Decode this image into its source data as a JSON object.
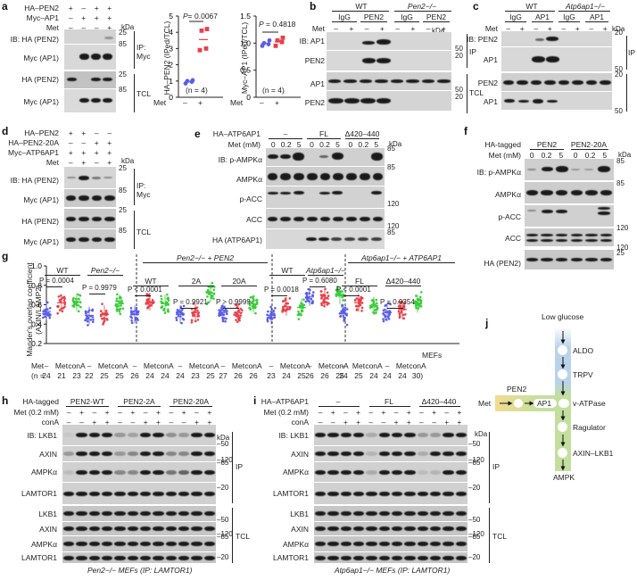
{
  "figure": {
    "colors": {
      "blue": "#5a5ee8",
      "red": "#e8404a",
      "green": "#3ccc3c",
      "blot_bg": "#c8c8c8",
      "band": "#1a1a1a",
      "pathway_blue": "#b9d3ea",
      "pathway_green": "#c3df9e",
      "pathway_yellow": "#f3dc8f"
    },
    "panels": {
      "a": {
        "label": "a",
        "conditions": [
          {
            "name": "HA–PEN2",
            "values": [
              "+",
              "–",
              "+",
              "+"
            ]
          },
          {
            "name": "Myc–AP1",
            "values": [
              "–",
              "+",
              "+",
              "+"
            ]
          },
          {
            "name": "Met",
            "values": [
              "–",
              "–",
              "–",
              "+"
            ]
          }
        ],
        "kda": "kDa",
        "rows": [
          {
            "label": "IB: HA (PEN2)",
            "mw": "25"
          },
          {
            "label": "Myc (AP1)",
            "mw": "85"
          },
          {
            "label": "HA (PEN2)",
            "mw": "25"
          },
          {
            "label": "Myc (AP1)",
            "mw": "85"
          }
        ],
        "groups": [
          "IP: Myc",
          "TCL"
        ]
      },
      "b": {
        "label": "b",
        "genotypes": [
          "WT",
          "Pen2−/−"
        ],
        "ip": [
          "IgG",
          "PEN2",
          "IgG",
          "PEN2"
        ],
        "met_label": "Met",
        "met": [
          "–",
          "+",
          "–",
          "+",
          "–",
          "+",
          "–",
          "+"
        ],
        "kda": "kDa",
        "rows": [
          {
            "label": "IB: AP1"
          },
          {
            "label": "PEN2"
          },
          {
            "label": "AP1"
          },
          {
            "label": "PEN2"
          }
        ],
        "mw_ip": [
          "50",
          "20"
        ],
        "mw_tcl": [
          "50",
          "20"
        ],
        "groups": [
          "IP",
          "TCL"
        ]
      },
      "c": {
        "label": "c",
        "genotypes": [
          "WT",
          "Atp6ap1−/−"
        ],
        "ip": [
          "IgG",
          "AP1",
          "IgG",
          "AP1"
        ],
        "met_label": "Met",
        "met": [
          "–",
          "+",
          "–",
          "+",
          "–",
          "+",
          "–",
          "+"
        ],
        "kda": "kDa",
        "rows": [
          {
            "label": "IB: PEN2",
            "mw": "20"
          },
          {
            "label": "AP1",
            "mw": "50"
          },
          {
            "label": "PEN2",
            "mw": "20"
          },
          {
            "label": "AP1",
            "mw": "50"
          }
        ],
        "groups": [
          "IP",
          "TCL"
        ]
      },
      "d": {
        "label": "d",
        "conditions": [
          {
            "name": "HA–PEN2",
            "values": [
              "+",
              "+",
              "–",
              "–"
            ]
          },
          {
            "name": "HA–PEN2-20A",
            "values": [
              "–",
              "–",
              "+",
              "+"
            ]
          },
          {
            "name": "Myc–ATP6AP1",
            "values": [
              "+",
              "+",
              "+",
              "+"
            ]
          },
          {
            "name": "Met",
            "values": [
              "–",
              "+",
              "–",
              "+"
            ]
          }
        ],
        "kda": "kDa",
        "rows": [
          {
            "label": "IB: HA (PEN2)",
            "mw": "25"
          },
          {
            "label": "Myc (AP1)",
            "mw": "85"
          },
          {
            "label": "HA (PEN2)",
            "mw": "25"
          },
          {
            "label": "Myc (AP1)",
            "mw": "85"
          }
        ],
        "groups": [
          "IP: Myc",
          "TCL"
        ]
      },
      "e": {
        "label": "e",
        "construct_label": "HA–ATP6AP1",
        "constructs": [
          "–",
          "FL",
          "Δ420–440"
        ],
        "met_label": "Met (mM)",
        "met": [
          "0",
          "0.2",
          "5",
          "0",
          "0.2",
          "5",
          "0",
          "0.2",
          "5"
        ],
        "kda": "kDa",
        "rows": [
          {
            "label": "IB: p-AMPKα",
            "mw": "85"
          },
          {
            "label": "AMPKα",
            "mw": "85"
          },
          {
            "label": "p-ACC",
            "mw": "120"
          },
          {
            "label": "ACC",
            "mw": "120"
          },
          {
            "label": "HA (ATP6AP1)",
            "mw": "85"
          }
        ]
      },
      "f": {
        "label": "f",
        "construct_label": "HA-tagged",
        "constructs": [
          "PEN2",
          "PEN2-20A"
        ],
        "met_label": "Met (mM)",
        "met": [
          "0",
          "0.2",
          "5",
          "0",
          "0.2",
          "5"
        ],
        "kda": "kDa",
        "rows": [
          {
            "label": "IB: p-AMPKα",
            "mw": "85"
          },
          {
            "label": "AMPKα",
            "mw": "85"
          },
          {
            "label": "p-ACC",
            "mw": "120"
          },
          {
            "label": "ACC",
            "mw": "120"
          },
          {
            "label": "HA (PEN2)",
            "mw": "25"
          }
        ]
      },
      "h": {
        "label": "h",
        "construct_label": "HA-tagged",
        "constructs": [
          "PEN2-WT",
          "PEN2-2A",
          "PEN2-20A"
        ],
        "met_label": "Met (0.2 mM)",
        "met": [
          "–",
          "+",
          "–",
          "+",
          "–",
          "+",
          "–",
          "+",
          "–",
          "+",
          "–",
          "+"
        ],
        "cona_label": "conA",
        "cona": [
          "–",
          "–",
          "+",
          "+",
          "–",
          "–",
          "+",
          "+",
          "–",
          "–",
          "+",
          "+"
        ],
        "kda": "kDa",
        "rows": [
          {
            "label": "IB: LKB1",
            "mw": "50"
          },
          {
            "label": "AXIN",
            "mw": "120"
          },
          {
            "label": "AMPKα",
            "mw": "85"
          },
          {
            "label": "LAMTOR1",
            "mw": "20"
          },
          {
            "label": "LKB1",
            "mw": "50"
          },
          {
            "label": "AXIN",
            "mw": "120"
          },
          {
            "label": "AMPKα",
            "mw": "85"
          },
          {
            "label": "LAMTOR1",
            "mw": "20"
          }
        ],
        "groups": [
          "IP",
          "TCL"
        ],
        "caption": "Pen2−/− MEFs (IP: LAMTOR1)"
      },
      "i": {
        "label": "i",
        "construct_label": "HA–ATP6AP1",
        "constructs": [
          "–",
          "FL",
          "Δ420–440"
        ],
        "met_label": "Met (0.2 mM)",
        "met": [
          "–",
          "+",
          "–",
          "+",
          "–",
          "+",
          "–",
          "+",
          "–",
          "+",
          "–",
          "+"
        ],
        "cona_label": "conA",
        "cona": [
          "–",
          "–",
          "+",
          "+",
          "–",
          "–",
          "+",
          "+",
          "–",
          "–",
          "+",
          "+"
        ],
        "kda": "kDa",
        "rows": [
          {
            "label": "IB: LKB1",
            "mw": "50"
          },
          {
            "label": "AXIN",
            "mw": "120"
          },
          {
            "label": "AMPKα",
            "mw": "85"
          },
          {
            "label": "LAMTOR1",
            "mw": "20"
          },
          {
            "label": "LKB1",
            "mw": "50"
          },
          {
            "label": "AXIN",
            "mw": "120"
          },
          {
            "label": "AMPKα",
            "mw": "85"
          },
          {
            "label": "LAMTOR1",
            "mw": "20"
          }
        ],
        "groups": [
          "IP",
          "TCL"
        ],
        "caption": "Atp6ap1−/− MEFs (IP: LAMTOR1)"
      },
      "j": {
        "label": "j",
        "top": "Low glucose",
        "nodes": [
          "ALDO",
          "TRPV",
          "v-ATPase",
          "Ragulator",
          "AXIN–LKB1"
        ],
        "bottom": "AMPK",
        "met": "Met",
        "pen2": "PEN2",
        "ap1": "AP1"
      }
    }
  },
  "chart_data": [
    {
      "type": "scatter",
      "panel": "a-left",
      "title": "",
      "ylabel": "HA–PEN2 (IPed/TCL)",
      "xlabel": "Met",
      "categories": [
        "–",
        "+"
      ],
      "ylim": [
        0,
        5
      ],
      "yticks": [
        0,
        1,
        2,
        3,
        4,
        5
      ],
      "series": [
        {
          "name": "Met –",
          "color": "#5a5ee8",
          "values": [
            0.85,
            0.95,
            1.0,
            1.05
          ]
        },
        {
          "name": "Met +",
          "color": "#e8404a",
          "values": [
            2.9,
            3.0,
            4.1,
            4.2
          ]
        }
      ],
      "annotations": [
        "P = 0.0067",
        "(n = 4)"
      ]
    },
    {
      "type": "scatter",
      "panel": "a-right",
      "ylabel": "Myc–AP1 (IPed/TCL)",
      "xlabel": "Met",
      "categories": [
        "–",
        "+"
      ],
      "ylim": [
        0,
        1.5
      ],
      "yticks": [
        0,
        0.5,
        1.0,
        1.5
      ],
      "series": [
        {
          "name": "Met –",
          "color": "#5a5ee8",
          "values": [
            0.95,
            0.98,
            1.0,
            1.05
          ]
        },
        {
          "name": "Met +",
          "color": "#e8404a",
          "values": [
            0.95,
            1.02,
            1.05,
            1.1
          ]
        }
      ],
      "annotations": [
        "P = 0.4818",
        "(n = 4)"
      ]
    },
    {
      "type": "scatter",
      "panel": "g",
      "ylabel": "Mander's overlap coefficient (AXIN/LAMP2)",
      "ylim": [
        0.2,
        1.0
      ],
      "yticks": [
        0.2,
        0.4,
        0.6,
        0.8,
        1.0
      ],
      "xlabel": "MEFs",
      "row_label": "Met",
      "categories": [
        "–",
        "Met",
        "conA",
        "–",
        "Met",
        "conA",
        "–",
        "Met",
        "conA",
        "–",
        "Met",
        "conA",
        "–",
        "Met",
        "conA",
        "–",
        "Met",
        "conA",
        "–",
        "Met",
        "conA",
        "–",
        "Met",
        "conA",
        "–",
        "Met",
        "conA"
      ],
      "n_label": "(n =",
      "n": [
        24,
        21,
        23,
        22,
        25,
        25,
        26,
        24,
        24,
        24,
        23,
        25,
        27,
        26,
        26,
        23,
        24,
        25,
        26,
        26,
        25,
        24,
        25,
        24,
        24,
        24,
        30
      ],
      "groups": [
        {
          "name": "WT",
          "p": "P = 0.0004",
          "means": [
            0.53,
            0.62,
            0.63
          ]
        },
        {
          "name": "Pen2−/−",
          "p": "P = 0.9979",
          "means": [
            0.49,
            0.5,
            0.61
          ]
        },
        {
          "name": "Pen2−/− + PEN2 WT",
          "p": "P < 0.0001",
          "means": [
            0.5,
            0.63,
            0.61
          ]
        },
        {
          "name": "Pen2−/− + PEN2 2A",
          "p": "P = 0.9921",
          "means": [
            0.5,
            0.52,
            0.72
          ]
        },
        {
          "name": "Pen2−/− + PEN2 20A",
          "p": "P > 0.9999",
          "means": [
            0.52,
            0.52,
            0.61
          ]
        },
        {
          "name": "WT",
          "p": "P = 0.0018",
          "means": [
            0.49,
            0.58,
            0.57
          ]
        },
        {
          "name": "Atp6ap1−/−",
          "p": "P = 0.6080",
          "means": [
            0.68,
            0.66,
            0.7
          ]
        },
        {
          "name": "Atp6ap1−/− + ATP6AP1 FL",
          "p": "P < 0.0001",
          "means": [
            0.51,
            0.62,
            0.59
          ]
        },
        {
          "name": "Atp6ap1−/− + ATP6AP1 Δ420–440",
          "p": "P = 0.9354",
          "means": [
            0.52,
            0.55,
            0.61
          ]
        }
      ],
      "super_groups": [
        "Pen2−/− + PEN2",
        "Atp6ap1−/− + ATP6AP1"
      ],
      "series_colors": {
        "–": "#5a5ee8",
        "Met": "#e8404a",
        "conA": "#3ccc3c"
      }
    }
  ]
}
